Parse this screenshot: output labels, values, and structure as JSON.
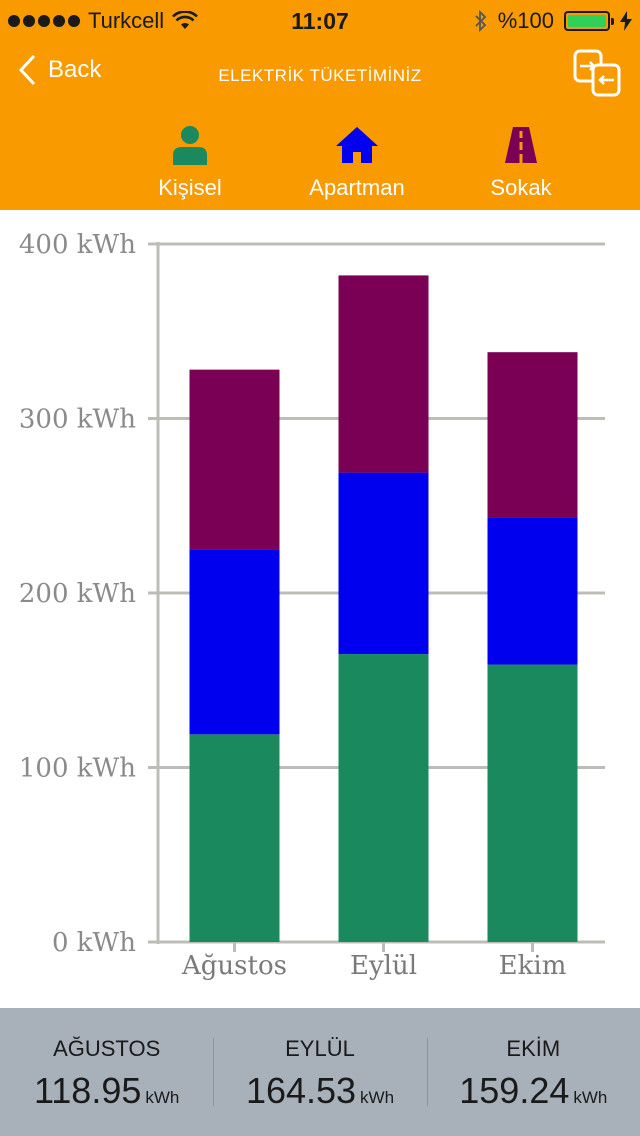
{
  "status_bar": {
    "carrier": "Turkcell",
    "time": "11:07",
    "battery": "%100"
  },
  "nav": {
    "back_label": "Back",
    "title": "ELEKTRİK TÜKETİMİNİZ"
  },
  "tabs": [
    {
      "label": "Kişisel",
      "icon": "person-icon",
      "color": "#1a8a5e"
    },
    {
      "label": "Apartman",
      "icon": "house-icon",
      "color": "#0000ee"
    },
    {
      "label": "Sokak",
      "icon": "street-icon",
      "color": "#7a0056"
    }
  ],
  "colors": {
    "header": "#f89a00",
    "kisisel": "#1a8a5e",
    "apartman": "#0000ee",
    "sokak": "#7a0056",
    "footer": "#a8b1ba"
  },
  "chart_data": {
    "type": "bar",
    "stacked": true,
    "categories": [
      "Ağustos",
      "Eylül",
      "Ekim"
    ],
    "series": [
      {
        "color": "#1a8a5e",
        "values": [
          119,
          165,
          159
        ]
      },
      {
        "color": "#0000ee",
        "values": [
          106,
          104,
          84
        ]
      },
      {
        "color": "#7a0056",
        "values": [
          103,
          113,
          95
        ]
      }
    ],
    "ylim": [
      0,
      400
    ],
    "yticks": [
      0,
      100,
      200,
      300,
      400
    ],
    "ytick_labels": [
      "0 kWh",
      "100 kWh",
      "200 kWh",
      "300 kWh",
      "400 kWh"
    ],
    "grid": true
  },
  "summary": [
    {
      "month": "AĞUSTOS",
      "value": "118.95",
      "unit": "kWh"
    },
    {
      "month": "EYLÜL",
      "value": "164.53",
      "unit": "kWh"
    },
    {
      "month": "EKİM",
      "value": "159.24",
      "unit": "kWh"
    }
  ]
}
